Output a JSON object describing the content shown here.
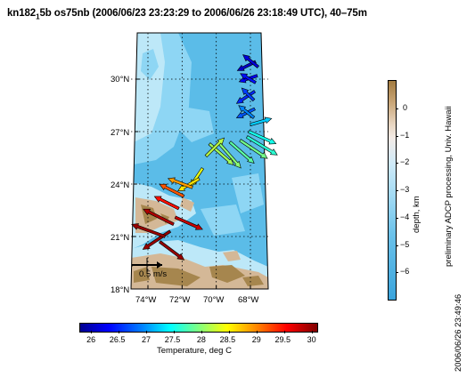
{
  "title": {
    "cruise": "kn182",
    "cruise_sub": "1",
    "rest": "5b os75nb (2006/06/23 23:23:29 to 2006/06/26 23:18:49 UTC), 40–75m"
  },
  "map": {
    "lat_labels": [
      "30°N",
      "27°N",
      "24°N",
      "21°N",
      "18°N"
    ],
    "lon_labels": [
      "74°W",
      "72°W",
      "70°W",
      "68°W"
    ],
    "scale_label": "0.5 m/s",
    "colors": {
      "deep_ocean": "#5bbce8",
      "mid_ocean": "#8ed6f4",
      "shallow": "#bde8f8",
      "land_light": "#d4b897",
      "land_dark": "#a6864e"
    }
  },
  "temperature_colorbar": {
    "label": "Temperature, deg C",
    "ticks": [
      "26",
      "26.5",
      "27",
      "27.5",
      "28",
      "28.5",
      "29",
      "29.5",
      "30"
    ],
    "range": [
      25.8,
      30.1
    ]
  },
  "depth_colorbar": {
    "label": "depth, km",
    "ticks": [
      "0",
      "−1",
      "−2",
      "−3",
      "−4",
      "−5",
      "−6"
    ],
    "range": [
      -7,
      1
    ]
  },
  "side_note": "preliminary ADCP processing,  Univ. Hawaii",
  "timestamp": "2006/06/26 23:49:46",
  "chart_data": {
    "type": "vector_map",
    "title": "kn182_1 5b os75nb (2006/06/23 23:23:29 to 2006/06/26 23:18:49 UTC), 40–75m",
    "xlabel": "",
    "ylabel": "",
    "xlim": [
      -75.2,
      -66.9
    ],
    "ylim": [
      18,
      33.8
    ],
    "x_ticks": [
      -74,
      -72,
      -70,
      -68
    ],
    "y_ticks": [
      18,
      21,
      24,
      27,
      30
    ],
    "grid": true,
    "vector_scale_mps": 0.5,
    "track": [
      {
        "lon": -67.7,
        "lat": 31.0,
        "u": -0.3,
        "v": -0.15,
        "temp": 26.1
      },
      {
        "lon": -67.55,
        "lat": 30.7,
        "u": -0.25,
        "v": 0.2,
        "temp": 26.2
      },
      {
        "lon": -67.6,
        "lat": 30.2,
        "u": -0.3,
        "v": -0.1,
        "temp": 26.3
      },
      {
        "lon": -67.7,
        "lat": 29.8,
        "u": -0.25,
        "v": 0.15,
        "temp": 26.4
      },
      {
        "lon": -67.75,
        "lat": 29.3,
        "u": -0.3,
        "v": -0.2,
        "temp": 26.5
      },
      {
        "lon": -67.8,
        "lat": 28.8,
        "u": -0.2,
        "v": 0.2,
        "temp": 26.6
      },
      {
        "lon": -67.75,
        "lat": 28.3,
        "u": -0.3,
        "v": -0.15,
        "temp": 26.7
      },
      {
        "lon": -67.8,
        "lat": 27.8,
        "u": -0.25,
        "v": 0.2,
        "temp": 26.9
      },
      {
        "lon": -68.0,
        "lat": 27.4,
        "u": 0.35,
        "v": 0.1,
        "temp": 27.2
      },
      {
        "lon": -68.1,
        "lat": 27.0,
        "u": 0.45,
        "v": -0.2,
        "temp": 27.5
      },
      {
        "lon": -68.2,
        "lat": 26.7,
        "u": 0.5,
        "v": -0.3,
        "temp": 27.6
      },
      {
        "lon": -68.6,
        "lat": 26.5,
        "u": 0.45,
        "v": -0.3,
        "temp": 27.9
      },
      {
        "lon": -69.2,
        "lat": 26.4,
        "u": 0.4,
        "v": -0.35,
        "temp": 27.8
      },
      {
        "lon": -69.8,
        "lat": 26.3,
        "u": 0.35,
        "v": -0.4,
        "temp": 28.0
      },
      {
        "lon": -70.4,
        "lat": 26.3,
        "u": 0.4,
        "v": -0.35,
        "temp": 28.1
      },
      {
        "lon": -70.6,
        "lat": 25.6,
        "u": 0.3,
        "v": 0.3,
        "temp": 28.2
      },
      {
        "lon": -70.8,
        "lat": 24.9,
        "u": -0.2,
        "v": -0.3,
        "temp": 28.4
      },
      {
        "lon": -71.0,
        "lat": 24.3,
        "u": -0.35,
        "v": -0.2,
        "temp": 28.6
      },
      {
        "lon": -71.4,
        "lat": 23.8,
        "u": -0.4,
        "v": 0.15,
        "temp": 28.9
      },
      {
        "lon": -71.9,
        "lat": 23.3,
        "u": -0.4,
        "v": 0.2,
        "temp": 29.2
      },
      {
        "lon": -72.2,
        "lat": 22.6,
        "u": -0.4,
        "v": 0.2,
        "temp": 29.5
      },
      {
        "lon": -72.4,
        "lat": 22.1,
        "u": 0.45,
        "v": -0.2,
        "temp": 29.8
      },
      {
        "lon": -72.5,
        "lat": 21.7,
        "u": -0.5,
        "v": 0.25,
        "temp": 29.9
      },
      {
        "lon": -72.7,
        "lat": 21.3,
        "u": -0.45,
        "v": -0.3,
        "temp": 30.0
      },
      {
        "lon": -73.0,
        "lat": 21.0,
        "u": -0.55,
        "v": 0.2,
        "temp": 30.0
      },
      {
        "lon": -73.3,
        "lat": 20.7,
        "u": 0.4,
        "v": -0.3,
        "temp": 30.0
      }
    ]
  }
}
